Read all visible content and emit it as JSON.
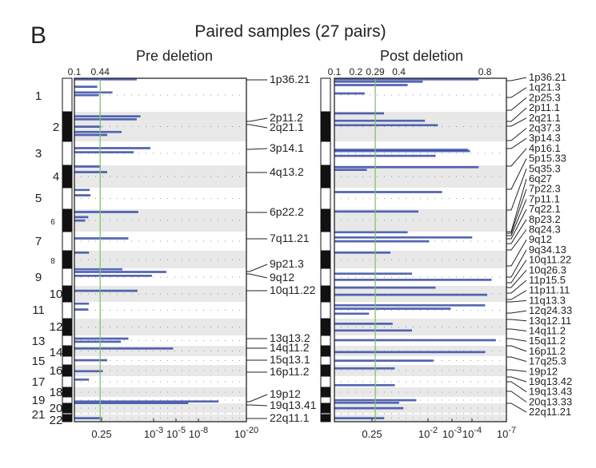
{
  "panel_letter": "B",
  "title": "Paired samples (27 pairs)",
  "chart_data": [
    {
      "type": "bar",
      "orientation": "horizontal",
      "title": "Pre deletion",
      "chromosomes": [
        "1",
        "2",
        "3",
        "4",
        "5",
        "6",
        "7",
        "8",
        "9",
        "10",
        "11",
        "12",
        "13",
        "14",
        "15",
        "16",
        "17",
        "18",
        "19",
        "20",
        "21",
        "22"
      ],
      "top_axis": {
        "ticks": [
          "0.1",
          "0.44"
        ],
        "values": [
          0.1,
          0.44
        ]
      },
      "bottom_axis": {
        "ticks": [
          {
            "base": "0.25",
            "exp": ""
          },
          {
            "base": "10",
            "exp": "-3"
          },
          {
            "base": "10",
            "exp": "-5"
          },
          {
            "base": "10",
            "exp": "-8"
          },
          {
            "base": "10",
            "exp": "-20"
          }
        ]
      },
      "threshold": 0.44,
      "xlim": [
        0.1,
        2.37
      ],
      "bars": [
        {
          "chr": 1,
          "pos": 0.03,
          "value": 0.92
        },
        {
          "chr": 1,
          "pos": 0.25,
          "value": 0.4
        },
        {
          "chr": 1,
          "pos": 0.42,
          "value": 0.6
        },
        {
          "chr": 1,
          "pos": 0.5,
          "value": 0.42
        },
        {
          "chr": 2,
          "pos": 0.15,
          "value": 0.97
        },
        {
          "chr": 2,
          "pos": 0.25,
          "value": 0.92
        },
        {
          "chr": 2,
          "pos": 0.5,
          "value": 0.45
        },
        {
          "chr": 2,
          "pos": 0.68,
          "value": 0.72
        },
        {
          "chr": 2,
          "pos": 0.78,
          "value": 0.53
        },
        {
          "chr": 3,
          "pos": 0.28,
          "value": 1.1
        },
        {
          "chr": 3,
          "pos": 0.45,
          "value": 0.88
        },
        {
          "chr": 4,
          "pos": 0.05,
          "value": 0.43
        },
        {
          "chr": 4,
          "pos": 0.3,
          "value": 0.53
        },
        {
          "chr": 5,
          "pos": 0.1,
          "value": 0.3
        },
        {
          "chr": 5,
          "pos": 0.35,
          "value": 0.31
        },
        {
          "chr": 6,
          "pos": 0.12,
          "value": 0.94
        },
        {
          "chr": 6,
          "pos": 0.35,
          "value": 0.28
        },
        {
          "chr": 6,
          "pos": 0.5,
          "value": 0.24
        },
        {
          "chr": 7,
          "pos": 0.35,
          "value": 0.81
        },
        {
          "chr": 8,
          "pos": 0.1,
          "value": 0.29
        },
        {
          "chr": 9,
          "pos": 0.2,
          "value": 1.31
        },
        {
          "chr": 9,
          "pos": 0.42,
          "value": 1.12
        },
        {
          "chr": 9,
          "pos": 0.05,
          "value": 0.73
        },
        {
          "chr": 10,
          "pos": 0.3,
          "value": 0.93
        },
        {
          "chr": 11,
          "pos": 0.1,
          "value": 0.29
        },
        {
          "chr": 11,
          "pos": 0.45,
          "value": 0.28
        },
        {
          "chr": 13,
          "pos": 0.3,
          "value": 0.81
        },
        {
          "chr": 13,
          "pos": 0.6,
          "value": 0.71
        },
        {
          "chr": 14,
          "pos": 0.25,
          "value": 1.4
        },
        {
          "chr": 15,
          "pos": 0.45,
          "value": 0.53
        },
        {
          "chr": 16,
          "pos": 0.55,
          "value": 0.47
        },
        {
          "chr": 17,
          "pos": 0.3,
          "value": 0.29
        },
        {
          "chr": 19,
          "pos": 0.7,
          "value": 2.0
        },
        {
          "chr": 19,
          "pos": 0.95,
          "value": 1.6
        },
        {
          "chr": 22,
          "pos": 0.5,
          "value": 0.46
        }
      ],
      "peak_labels": [
        "1p36.21",
        "2p11.2",
        "2q21.1",
        "3p14.1",
        "4q13.2",
        "6p22.2",
        "7q11.21",
        "9p21.3",
        "9q12",
        "10q11.22",
        "13q13.2",
        "14q11.2",
        "15q13.1",
        "16p11.2",
        "19p12",
        "19q13.41",
        "22q11.1"
      ]
    },
    {
      "type": "bar",
      "orientation": "horizontal",
      "title": "Post deletion",
      "top_axis": {
        "ticks": [
          "0.1",
          "0.2",
          "0.29",
          "0.4",
          "0.8"
        ],
        "values": [
          0.1,
          0.2,
          0.29,
          0.4,
          0.8
        ]
      },
      "bottom_axis": {
        "ticks": [
          {
            "base": "0.25",
            "exp": ""
          },
          {
            "base": "10",
            "exp": "-2"
          },
          {
            "base": "10",
            "exp": "-3"
          },
          {
            "base": "10",
            "exp": "-4"
          },
          {
            "base": "10",
            "exp": "-7"
          }
        ]
      },
      "threshold": 0.29,
      "xlim": [
        0.1,
        0.9
      ],
      "bars": [
        {
          "chr": 1,
          "pos": 0.03,
          "value": 0.77
        },
        {
          "chr": 1,
          "pos": 0.1,
          "value": 0.51
        },
        {
          "chr": 1,
          "pos": 0.2,
          "value": 0.44
        },
        {
          "chr": 1,
          "pos": 0.45,
          "value": 0.24
        },
        {
          "chr": 2,
          "pos": 0.05,
          "value": 0.33
        },
        {
          "chr": 2,
          "pos": 0.3,
          "value": 0.52
        },
        {
          "chr": 2,
          "pos": 0.45,
          "value": 0.58
        },
        {
          "chr": 3,
          "pos": 0.35,
          "value": 0.72
        },
        {
          "chr": 3,
          "pos": 0.4,
          "value": 0.73
        },
        {
          "chr": 3,
          "pos": 0.6,
          "value": 0.57
        },
        {
          "chr": 4,
          "pos": 0.08,
          "value": 0.77
        },
        {
          "chr": 4,
          "pos": 0.2,
          "value": 0.25
        },
        {
          "chr": 5,
          "pos": 0.2,
          "value": 0.6
        },
        {
          "chr": 6,
          "pos": 0.1,
          "value": 0.49
        },
        {
          "chr": 7,
          "pos": 0.03,
          "value": 0.44
        },
        {
          "chr": 7,
          "pos": 0.3,
          "value": 0.74
        },
        {
          "chr": 7,
          "pos": 0.5,
          "value": 0.54
        },
        {
          "chr": 8,
          "pos": 0.1,
          "value": 0.36
        },
        {
          "chr": 9,
          "pos": 0.3,
          "value": 0.46
        },
        {
          "chr": 9,
          "pos": 0.65,
          "value": 0.83
        },
        {
          "chr": 10,
          "pos": 0.1,
          "value": 0.57
        },
        {
          "chr": 10,
          "pos": 0.55,
          "value": 0.81
        },
        {
          "chr": 11,
          "pos": 0.2,
          "value": 0.8
        },
        {
          "chr": 11,
          "pos": 0.4,
          "value": 0.64
        },
        {
          "chr": 11,
          "pos": 0.7,
          "value": 0.26
        },
        {
          "chr": 12,
          "pos": 0.3,
          "value": 0.37
        },
        {
          "chr": 12,
          "pos": 0.7,
          "value": 0.46
        },
        {
          "chr": 13,
          "pos": 0.45,
          "value": 0.85
        },
        {
          "chr": 14,
          "pos": 0.6,
          "value": 0.8
        },
        {
          "chr": 15,
          "pos": 0.5,
          "value": 0.56
        },
        {
          "chr": 16,
          "pos": 0.3,
          "value": 0.38
        },
        {
          "chr": 17,
          "pos": 0.8,
          "value": 0.38
        },
        {
          "chr": 19,
          "pos": 0.5,
          "value": 0.48
        },
        {
          "chr": 19,
          "pos": 0.9,
          "value": 0.4
        },
        {
          "chr": 20,
          "pos": 0.5,
          "value": 0.42
        },
        {
          "chr": 22,
          "pos": 0.5,
          "value": 0.33
        }
      ],
      "peak_labels": [
        "1p36.21",
        "1q21.3",
        "2p25.3",
        "2p11.1",
        "2q21.1",
        "2q37.3",
        "3p14.3",
        "4p16.1",
        "5p15.33",
        "5q35.3",
        "6q27",
        "7p22.3",
        "7p11.1",
        "7q22.1",
        "8p23.2",
        "8q24.3",
        "9q12",
        "9q34.13",
        "10q11.22",
        "10q26.3",
        "11p15.5",
        "11p11.11",
        "11q13.3",
        "12q24.33",
        "13q12.11",
        "14q11.2",
        "15q11.2",
        "16p11.2",
        "17q25.3",
        "19p12",
        "19q13.42",
        "19q13.43",
        "20q13.33",
        "22q11.21"
      ]
    }
  ],
  "colors": {
    "bar": "#3a4ea6",
    "threshold": "#7cc36e",
    "band": "#e8e8e8",
    "ideogram_dark": "#111111"
  }
}
